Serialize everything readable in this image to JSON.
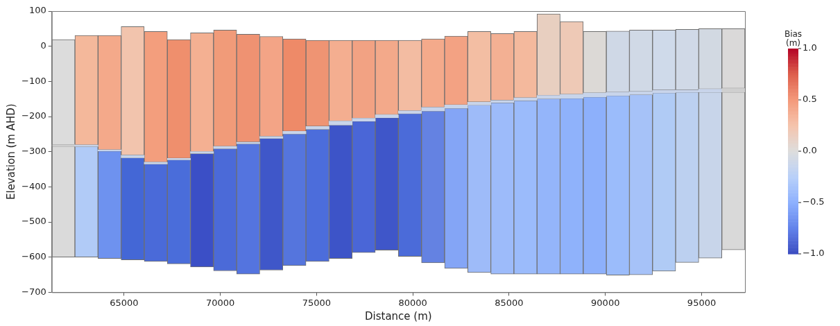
{
  "chart_data": {
    "type": "bar",
    "xlabel": "Distance (m)",
    "ylabel": "Elevation (m AHD)",
    "clabel": "Bias\n(m)",
    "x": [
      61850,
      63050,
      64250,
      65450,
      66650,
      67850,
      69050,
      70250,
      71450,
      72650,
      73850,
      75050,
      76250,
      77450,
      78650,
      79850,
      81050,
      82250,
      83450,
      84650,
      85850,
      87050,
      88250,
      89450,
      90650,
      91850,
      93050,
      94250,
      95450,
      96650
    ],
    "series": [
      {
        "base": [
          -280,
          -281,
          -295,
          -310,
          -330,
          -319,
          -300,
          -285,
          -273,
          -257,
          -242,
          -228,
          -213,
          -205,
          -195,
          -184,
          -174,
          -167,
          -159,
          -154,
          -147,
          -140,
          -137,
          -133,
          -131,
          -129,
          -125,
          -125,
          -122,
          -120
        ],
        "values": [
          299,
          312,
          326,
          366,
          372,
          338,
          338,
          331,
          307,
          285,
          263,
          245,
          230,
          222,
          212,
          201,
          195,
          196,
          201,
          190,
          189,
          232,
          207,
          175,
          174,
          175,
          171,
          173,
          172,
          170
        ],
        "colors": [
          "#dcdcdc",
          "#f4b89b",
          "#f4a98a",
          "#f2c4ad",
          "#f39e7d",
          "#ef8f6d",
          "#f4b092",
          "#f19b79",
          "#ef9272",
          "#f3a486",
          "#ee8a68",
          "#ef9473",
          "#f4ae90",
          "#f2a283",
          "#f3a98a",
          "#f3bca2",
          "#f4aa8b",
          "#f3a283",
          "#f3bea3",
          "#f3b093",
          "#f4b99d",
          "#e8cfc0",
          "#eec9b6",
          "#dcd9d6",
          "#cfd8e6",
          "#d0d9e6",
          "#cfdaea",
          "#d0d9e7",
          "#d2d9e2",
          "#dad9d9"
        ]
      },
      {
        "base": [
          -284,
          -285,
          -298,
          -317,
          -335,
          -323,
          -305,
          -291,
          -277,
          -262,
          -249,
          -236,
          -224,
          -213,
          -203,
          -191,
          -184,
          -176,
          -167,
          -160,
          -154,
          -149,
          -148,
          -144,
          -140,
          -137,
          -132,
          -130,
          -130,
          -130
        ],
        "values": [
          4,
          4,
          3,
          7,
          5,
          4,
          5,
          6,
          4,
          5,
          7,
          8,
          11,
          8,
          8,
          7,
          10,
          9,
          8,
          6,
          7,
          9,
          11,
          11,
          9,
          8,
          7,
          5,
          8,
          10
        ],
        "colors": [
          "#cfcfcf",
          "#c8d4ea",
          "#c8d4ea",
          "#c8d4ea",
          "#c8d4ea",
          "#c8d4ea",
          "#c8d4ea",
          "#c8d4ea",
          "#c8d4ea",
          "#c8d4ea",
          "#c8d4ea",
          "#c8d4ea",
          "#c8d4ea",
          "#c8d4ea",
          "#c8d4ea",
          "#c8d4ea",
          "#c8d4ea",
          "#c8d4ea",
          "#c8d4ea",
          "#c8d4ea",
          "#c8d4ea",
          "#c8d4ea",
          "#c8d4ea",
          "#c8d4ea",
          "#c8d4ea",
          "#c8d4ea",
          "#c8d4ea",
          "#c8d4ea",
          "#c8d4ea",
          "#cfcfcf"
        ]
      },
      {
        "base": [
          -600,
          -600,
          -604,
          -608,
          -612,
          -619,
          -628,
          -639,
          -648,
          -637,
          -624,
          -612,
          -604,
          -587,
          -580,
          -598,
          -616,
          -632,
          -644,
          -648,
          -648,
          -648,
          -648,
          -648,
          -651,
          -650,
          -640,
          -615,
          -603,
          -579
        ],
        "values": [
          316,
          315,
          306,
          291,
          277,
          296,
          323,
          348,
          371,
          375,
          375,
          376,
          380,
          374,
          377,
          407,
          432,
          456,
          477,
          488,
          494,
          499,
          500,
          504,
          511,
          513,
          508,
          485,
          473,
          449
        ],
        "colors": [
          "#dadada",
          "#b1cbf7",
          "#6e92ef",
          "#4467d6",
          "#4a6ad9",
          "#4a6dda",
          "#3b4fc6",
          "#4b6ad8",
          "#5474df",
          "#3f57c9",
          "#5575dd",
          "#4c6ddb",
          "#3d54c8",
          "#4a66d7",
          "#3f56c9",
          "#4b6bd9",
          "#6482e2",
          "#84a5f6",
          "#9ebbf9",
          "#9dbbfa",
          "#9bbbfb",
          "#94b5fa",
          "#8fb2fb",
          "#8db0fb",
          "#9bbcfb",
          "#a6c2f8",
          "#b0cbf5",
          "#bcd0f0",
          "#c8d5ea",
          "#d9d9d9"
        ]
      }
    ],
    "xlim": [
      61250,
      97250
    ],
    "xticks": [
      65000,
      70000,
      75000,
      80000,
      85000,
      90000,
      95000
    ],
    "ylim": [
      -700,
      100
    ],
    "yticks": [
      {
        "value": -700,
        "label": "−700"
      },
      {
        "value": -600,
        "label": "−600"
      },
      {
        "value": -500,
        "label": "−500"
      },
      {
        "value": -400,
        "label": "−400"
      },
      {
        "value": -300,
        "label": "−300"
      },
      {
        "value": -200,
        "label": "−200"
      },
      {
        "value": -100,
        "label": "−100"
      },
      0,
      100
    ],
    "clim": [
      -1,
      1
    ],
    "cticks": [
      {
        "value": -1,
        "label": "−1.0"
      },
      {
        "value": -0.5,
        "label": "−0.5"
      },
      {
        "value": 0,
        "label": "0.0"
      },
      {
        "value": 0.5,
        "label": "0.5"
      },
      {
        "value": 1,
        "label": "1.0"
      }
    ],
    "grid": false,
    "legend": false
  }
}
